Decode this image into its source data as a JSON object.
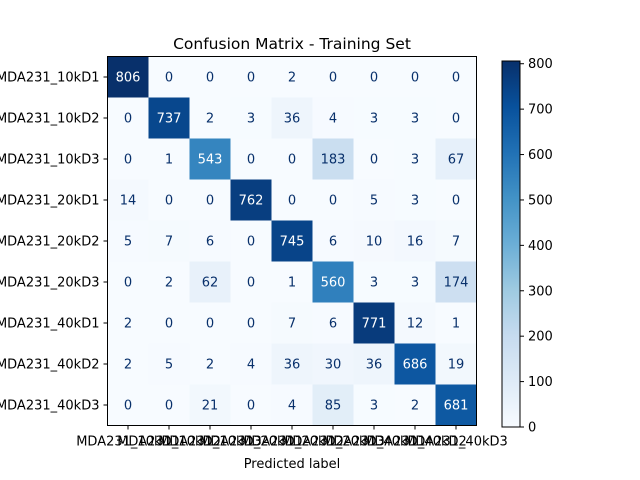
{
  "chart_data": {
    "type": "heatmap",
    "title": "Confusion Matrix - Training Set",
    "xlabel": "Predicted label",
    "ylabel": "",
    "labels": [
      "MDA231_10kD1",
      "MDA231_10kD2",
      "MDA231_10kD3",
      "MDA231_20kD1",
      "MDA231_20kD2",
      "MDA231_20kD3",
      "MDA231_40kD1",
      "MDA231_40kD2",
      "MDA231_40kD3"
    ],
    "matrix": [
      [
        806,
        0,
        0,
        0,
        2,
        0,
        0,
        0,
        0
      ],
      [
        0,
        737,
        2,
        3,
        36,
        4,
        3,
        3,
        0
      ],
      [
        0,
        1,
        543,
        0,
        0,
        183,
        0,
        3,
        67
      ],
      [
        14,
        0,
        0,
        762,
        0,
        0,
        5,
        3,
        0
      ],
      [
        5,
        7,
        6,
        0,
        745,
        6,
        10,
        16,
        7
      ],
      [
        0,
        2,
        62,
        0,
        1,
        560,
        3,
        3,
        174
      ],
      [
        2,
        0,
        0,
        0,
        7,
        6,
        771,
        12,
        1
      ],
      [
        2,
        5,
        2,
        4,
        36,
        30,
        36,
        686,
        19
      ],
      [
        0,
        0,
        21,
        0,
        4,
        85,
        3,
        2,
        681
      ]
    ],
    "colormap": "Blues",
    "color_range": [
      0,
      806
    ],
    "colorbar_ticks": [
      0,
      100,
      200,
      300,
      400,
      500,
      600,
      700,
      800
    ]
  }
}
